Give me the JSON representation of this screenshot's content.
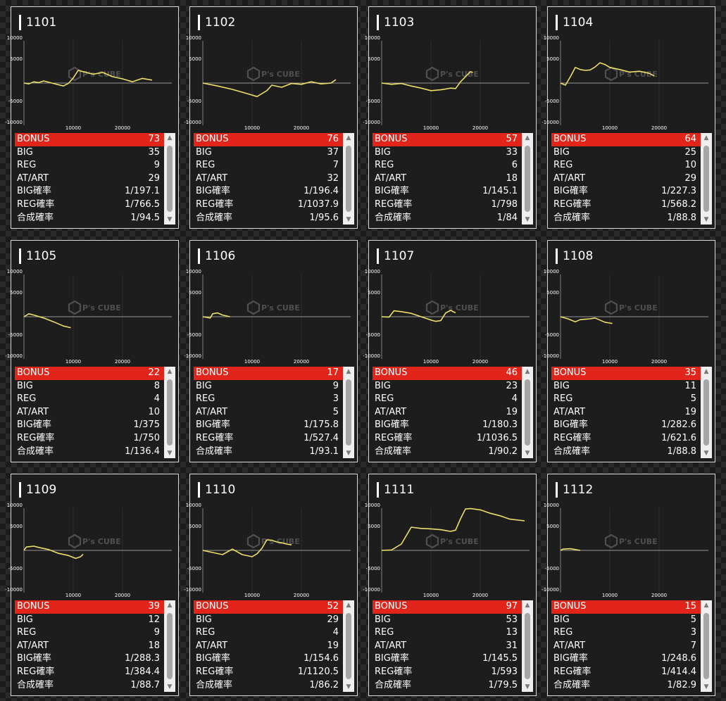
{
  "axis": {
    "y_labels": [
      "10000",
      "5000",
      "-5000",
      "-10000"
    ],
    "x_labels": [
      "10000",
      "20000"
    ]
  },
  "watermark": "P's CUBE",
  "stat_labels": [
    "BONUS",
    "BIG",
    "REG",
    "AT/ART",
    "BIG確率",
    "REG確率",
    "合成確率"
  ],
  "colors": {
    "bonus_row": "#e1251b",
    "line": "#ecdf6a",
    "panel_bg": "#1d1d1d"
  },
  "icons": {
    "up": "scroll-up-arrow-icon",
    "down": "scroll-down-arrow-icon"
  },
  "machines": [
    {
      "number": "1101",
      "stats": [
        "73",
        "35",
        "9",
        "29",
        "1/197.1",
        "1/766.5",
        "1/94.5"
      ],
      "chart_data": {
        "type": "line",
        "xlim": [
          0,
          30000
        ],
        "ylim": [
          -10000,
          10000
        ],
        "points": [
          [
            0,
            0
          ],
          [
            1000,
            -200
          ],
          [
            2000,
            300
          ],
          [
            3000,
            100
          ],
          [
            4000,
            500
          ],
          [
            6000,
            -100
          ],
          [
            8000,
            -700
          ],
          [
            9000,
            -100
          ],
          [
            10000,
            1200
          ],
          [
            11000,
            3000
          ],
          [
            12000,
            2700
          ],
          [
            14000,
            2100
          ],
          [
            16000,
            2500
          ],
          [
            18000,
            1500
          ],
          [
            20000,
            1000
          ],
          [
            22000,
            300
          ],
          [
            24000,
            1100
          ],
          [
            26000,
            700
          ]
        ]
      }
    },
    {
      "number": "1102",
      "stats": [
        "76",
        "37",
        "7",
        "32",
        "1/196.4",
        "1/1037.9",
        "1/95.6"
      ],
      "chart_data": {
        "type": "line",
        "xlim": [
          0,
          30000
        ],
        "ylim": [
          -10000,
          10000
        ],
        "points": [
          [
            0,
            0
          ],
          [
            3000,
            -700
          ],
          [
            6000,
            -1500
          ],
          [
            9000,
            -2500
          ],
          [
            11000,
            -3200
          ],
          [
            12000,
            -2500
          ],
          [
            13000,
            -1800
          ],
          [
            14000,
            -500
          ],
          [
            16000,
            -1000
          ],
          [
            18000,
            -100
          ],
          [
            20000,
            -300
          ],
          [
            22000,
            300
          ],
          [
            24000,
            -200
          ],
          [
            26000,
            0
          ],
          [
            27000,
            800
          ]
        ]
      }
    },
    {
      "number": "1103",
      "stats": [
        "57",
        "33",
        "6",
        "18",
        "1/145.1",
        "1/798",
        "1/84"
      ],
      "chart_data": {
        "type": "line",
        "xlim": [
          0,
          30000
        ],
        "ylim": [
          -10000,
          10000
        ],
        "points": [
          [
            0,
            0
          ],
          [
            2000,
            -300
          ],
          [
            4000,
            -100
          ],
          [
            6000,
            -700
          ],
          [
            8000,
            -1200
          ],
          [
            10000,
            -1800
          ],
          [
            12000,
            -1600
          ],
          [
            14000,
            -1200
          ],
          [
            15000,
            -1300
          ],
          [
            16000,
            300
          ],
          [
            17000,
            1500
          ],
          [
            18000,
            2700
          ],
          [
            18500,
            2500
          ]
        ]
      }
    },
    {
      "number": "1104",
      "stats": [
        "64",
        "25",
        "10",
        "29",
        "1/227.3",
        "1/568.2",
        "1/88.8"
      ],
      "chart_data": {
        "type": "line",
        "xlim": [
          0,
          30000
        ],
        "ylim": [
          -10000,
          10000
        ],
        "points": [
          [
            0,
            0
          ],
          [
            1000,
            -500
          ],
          [
            2000,
            1500
          ],
          [
            3000,
            3700
          ],
          [
            4000,
            3200
          ],
          [
            5000,
            3000
          ],
          [
            6000,
            3100
          ],
          [
            7000,
            3800
          ],
          [
            8000,
            4800
          ],
          [
            9000,
            4400
          ],
          [
            10000,
            3700
          ],
          [
            12000,
            3200
          ],
          [
            14000,
            2600
          ],
          [
            16000,
            2800
          ],
          [
            18000,
            2300
          ],
          [
            19000,
            1700
          ]
        ]
      }
    },
    {
      "number": "1105",
      "stats": [
        "22",
        "8",
        "4",
        "10",
        "1/375",
        "1/750",
        "1/136.4"
      ],
      "chart_data": {
        "type": "line",
        "xlim": [
          0,
          30000
        ],
        "ylim": [
          -10000,
          10000
        ],
        "points": [
          [
            0,
            0
          ],
          [
            1000,
            700
          ],
          [
            2000,
            400
          ],
          [
            4000,
            -300
          ],
          [
            6000,
            -1200
          ],
          [
            8000,
            -2200
          ],
          [
            9500,
            -2600
          ]
        ]
      }
    },
    {
      "number": "1106",
      "stats": [
        "17",
        "9",
        "3",
        "5",
        "1/175.8",
        "1/527.4",
        "1/93.1"
      ],
      "chart_data": {
        "type": "line",
        "xlim": [
          0,
          30000
        ],
        "ylim": [
          -10000,
          10000
        ],
        "points": [
          [
            0,
            0
          ],
          [
            1500,
            -300
          ],
          [
            2000,
            700
          ],
          [
            3000,
            900
          ],
          [
            4000,
            400
          ],
          [
            5500,
            0
          ]
        ]
      }
    },
    {
      "number": "1107",
      "stats": [
        "46",
        "23",
        "4",
        "19",
        "1/180.3",
        "1/1036.5",
        "1/90.2"
      ],
      "chart_data": {
        "type": "line",
        "xlim": [
          0,
          30000
        ],
        "ylim": [
          -10000,
          10000
        ],
        "points": [
          [
            0,
            0
          ],
          [
            1500,
            -100
          ],
          [
            2500,
            1400
          ],
          [
            4000,
            1200
          ],
          [
            6000,
            800
          ],
          [
            8000,
            0
          ],
          [
            10000,
            -800
          ],
          [
            11000,
            -1100
          ],
          [
            12000,
            -900
          ],
          [
            13000,
            900
          ],
          [
            14000,
            1500
          ],
          [
            15000,
            900
          ]
        ]
      }
    },
    {
      "number": "1108",
      "stats": [
        "35",
        "11",
        "5",
        "19",
        "1/282.6",
        "1/621.6",
        "1/88.8"
      ],
      "chart_data": {
        "type": "line",
        "xlim": [
          0,
          30000
        ],
        "ylim": [
          -10000,
          10000
        ],
        "points": [
          [
            0,
            0
          ],
          [
            1500,
            -500
          ],
          [
            3000,
            -1200
          ],
          [
            4000,
            -700
          ],
          [
            5000,
            -600
          ],
          [
            6000,
            -500
          ],
          [
            7000,
            -300
          ],
          [
            8000,
            -800
          ],
          [
            9000,
            -1300
          ],
          [
            10000,
            -1500
          ],
          [
            10500,
            -1600
          ]
        ]
      }
    },
    {
      "number": "1109",
      "stats": [
        "39",
        "12",
        "9",
        "18",
        "1/288.3",
        "1/384.4",
        "1/88.7"
      ],
      "chart_data": {
        "type": "line",
        "xlim": [
          0,
          30000
        ],
        "ylim": [
          -10000,
          10000
        ],
        "points": [
          [
            0,
            0
          ],
          [
            500,
            800
          ],
          [
            2000,
            1000
          ],
          [
            3000,
            700
          ],
          [
            5000,
            200
          ],
          [
            7000,
            -700
          ],
          [
            9000,
            -1200
          ],
          [
            10500,
            -1900
          ],
          [
            11500,
            -1500
          ],
          [
            12000,
            -900
          ]
        ]
      }
    },
    {
      "number": "1110",
      "stats": [
        "52",
        "29",
        "4",
        "19",
        "1/154.6",
        "1/1120.5",
        "1/86.2"
      ],
      "chart_data": {
        "type": "line",
        "xlim": [
          0,
          30000
        ],
        "ylim": [
          -10000,
          10000
        ],
        "points": [
          [
            0,
            0
          ],
          [
            2000,
            -500
          ],
          [
            4000,
            -1000
          ],
          [
            6000,
            300
          ],
          [
            8000,
            -1000
          ],
          [
            10000,
            -1500
          ],
          [
            11000,
            -800
          ],
          [
            12000,
            500
          ],
          [
            13000,
            2500
          ],
          [
            14000,
            2400
          ],
          [
            15000,
            2000
          ],
          [
            16000,
            1800
          ],
          [
            17000,
            1500
          ],
          [
            18000,
            1300
          ]
        ]
      }
    },
    {
      "number": "1111",
      "stats": [
        "97",
        "53",
        "13",
        "31",
        "1/145.5",
        "1/593",
        "1/79.5"
      ],
      "chart_data": {
        "type": "line",
        "xlim": [
          0,
          30000
        ],
        "ylim": [
          -10000,
          10000
        ],
        "points": [
          [
            0,
            0
          ],
          [
            2000,
            100
          ],
          [
            4000,
            1500
          ],
          [
            6000,
            5500
          ],
          [
            8000,
            5200
          ],
          [
            10000,
            5100
          ],
          [
            12000,
            4900
          ],
          [
            14000,
            4500
          ],
          [
            15000,
            4800
          ],
          [
            16000,
            7500
          ],
          [
            17000,
            9800
          ],
          [
            18000,
            9900
          ],
          [
            20000,
            9600
          ],
          [
            22000,
            8800
          ],
          [
            24000,
            8200
          ],
          [
            26000,
            7400
          ],
          [
            29000,
            7000
          ]
        ]
      }
    },
    {
      "number": "1112",
      "stats": [
        "15",
        "5",
        "3",
        "7",
        "1/248.6",
        "1/414.4",
        "1/82.9"
      ],
      "chart_data": {
        "type": "line",
        "xlim": [
          0,
          30000
        ],
        "ylim": [
          -10000,
          10000
        ],
        "points": [
          [
            0,
            0
          ],
          [
            500,
            300
          ],
          [
            2000,
            400
          ],
          [
            3500,
            100
          ],
          [
            4000,
            0
          ]
        ]
      }
    }
  ]
}
